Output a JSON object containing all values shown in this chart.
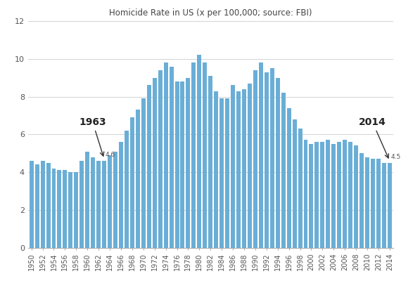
{
  "title": "Homicide Rate in US (x per 100,000; source: FBI)",
  "years": [
    1950,
    1951,
    1952,
    1953,
    1954,
    1955,
    1956,
    1957,
    1958,
    1959,
    1960,
    1961,
    1962,
    1963,
    1964,
    1965,
    1966,
    1967,
    1968,
    1969,
    1970,
    1971,
    1972,
    1973,
    1974,
    1975,
    1976,
    1977,
    1978,
    1979,
    1980,
    1981,
    1982,
    1983,
    1984,
    1985,
    1986,
    1987,
    1988,
    1989,
    1990,
    1991,
    1992,
    1993,
    1994,
    1995,
    1996,
    1997,
    1998,
    1999,
    2000,
    2001,
    2002,
    2003,
    2004,
    2005,
    2006,
    2007,
    2008,
    2009,
    2010,
    2011,
    2012,
    2013,
    2014
  ],
  "values": [
    4.6,
    4.4,
    4.6,
    4.5,
    4.2,
    4.1,
    4.1,
    4.0,
    4.0,
    4.6,
    5.1,
    4.8,
    4.6,
    4.6,
    4.9,
    5.1,
    5.6,
    6.2,
    6.9,
    7.3,
    7.9,
    8.6,
    9.0,
    9.4,
    9.8,
    9.6,
    8.8,
    8.8,
    9.0,
    9.8,
    10.2,
    9.8,
    9.1,
    8.3,
    7.9,
    7.9,
    8.6,
    8.3,
    8.4,
    8.7,
    9.4,
    9.8,
    9.3,
    9.5,
    9.0,
    8.2,
    7.4,
    6.8,
    6.3,
    5.7,
    5.5,
    5.6,
    5.6,
    5.7,
    5.5,
    5.6,
    5.7,
    5.6,
    5.4,
    5.0,
    4.8,
    4.7,
    4.7,
    4.5,
    4.5
  ],
  "bar_color": "#6aaed6",
  "ylim": [
    0,
    12
  ],
  "yticks": [
    0,
    2,
    4,
    6,
    8,
    10,
    12
  ],
  "annotation_1963_text": "1963",
  "annotation_1963_value": "4.6",
  "annotation_1963_year": 1963,
  "annotation_2014_text": "2014",
  "annotation_2014_value": "4.5",
  "annotation_2014_year": 2014,
  "bg_color": "#ffffff",
  "grid_color": "#cccccc"
}
